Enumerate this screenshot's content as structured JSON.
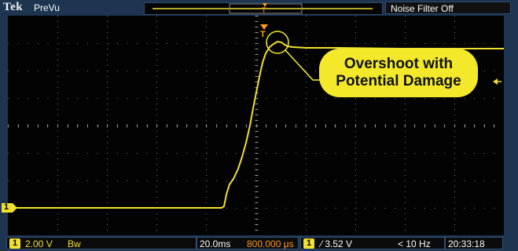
{
  "header": {
    "brand": "Tek",
    "mode": "PreVu",
    "noise_filter": "Noise Filter Off"
  },
  "screen": {
    "channel_marker": "1",
    "callout_line1": "Overshoot with",
    "callout_line2": "Potential Damage"
  },
  "status": {
    "ch1_badge": "1",
    "ch1_scale": "2.00 V",
    "ch1_bw": "Bᴡ",
    "timebase": "20.0ms",
    "trigger_pos": "800.000 μs",
    "trig_badge": "1",
    "trig_level": "⁄ 3.52 V",
    "trig_freq": "< 10 Hz",
    "time": "20:33:18"
  },
  "colors": {
    "trace": "#f0e030",
    "trigger": "#ff9a1a",
    "screen_bg": "#030303",
    "frame_bg": "#1d3550",
    "callout_bg": "#f3e92a"
  }
}
